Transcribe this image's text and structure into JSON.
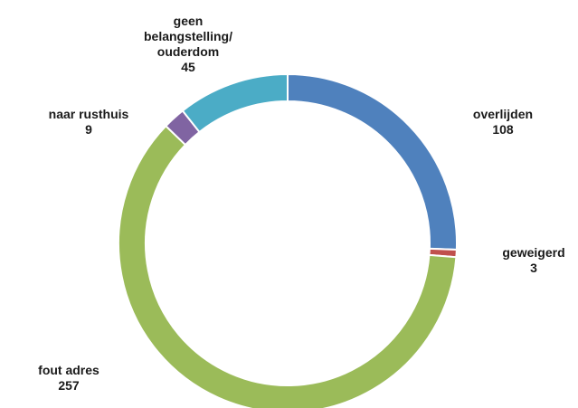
{
  "chart_data": {
    "type": "pie",
    "variant": "donut",
    "title": "",
    "legend": "none",
    "slices": [
      {
        "label": "overlijden",
        "value": 108,
        "color": "#4F81BD",
        "label_lines": [
          "overlijden"
        ]
      },
      {
        "label": "geweigerd",
        "value": 3,
        "color": "#C0504D",
        "label_lines": [
          "geweigerd"
        ]
      },
      {
        "label": "fout adres",
        "value": 257,
        "color": "#9BBB59",
        "label_lines": [
          "fout adres"
        ]
      },
      {
        "label": "naar rusthuis",
        "value": 9,
        "color": "#8064A2",
        "label_lines": [
          "naar rusthuis"
        ]
      },
      {
        "label": "geen belangstelling/ ouderdom",
        "value": 45,
        "color": "#4BACC6",
        "label_lines": [
          "geen",
          "belangstelling/",
          "ouderdom"
        ]
      }
    ]
  }
}
